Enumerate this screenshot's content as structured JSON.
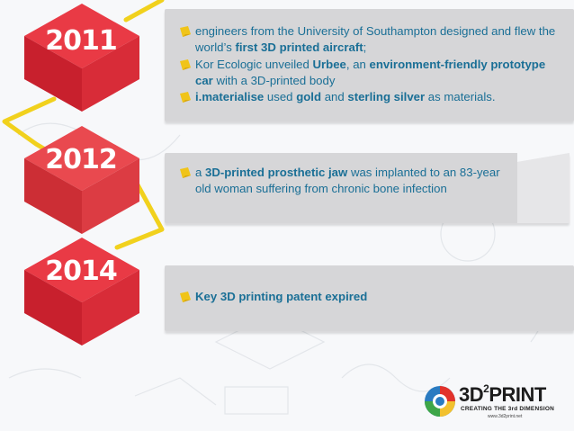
{
  "timeline": [
    {
      "year": "2011",
      "items": [
        {
          "html": "engineers from the University of Southampton designed and flew the world’s <b>first 3D printed aircraft</b>;"
        },
        {
          "html": "Kor Ecologic unveiled <b>Urbee</b>, an <b>environment-friendly prototype car</b> with a 3D-printed body"
        },
        {
          "html": "<b>i.materialise</b> used <b>gold</b> and <b>sterling silver</b> as materials."
        }
      ]
    },
    {
      "year": "2012",
      "items": [
        {
          "html": "a <b>3D-printed prosthetic jaw</b> was implanted to an 83-year old woman suffering from chronic bone infection"
        }
      ]
    },
    {
      "year": "2014",
      "items": [
        {
          "html": "<b>Key 3D printing patent expired</b>"
        }
      ]
    }
  ],
  "logo": {
    "name_main": "3D",
    "name_sup": "2",
    "name_end": "PRINT",
    "tagline": "CREATING THE 3rd DIMENSION",
    "url": "www.3d2print.net"
  },
  "colors": {
    "cube_top": "#e93a45",
    "cube_left": "#c8202d",
    "cube_right": "#d82c38",
    "connector": "#f1d11d",
    "card": "#d6d6d8",
    "text": "#1a6f96",
    "bullet": "#f0c419"
  }
}
